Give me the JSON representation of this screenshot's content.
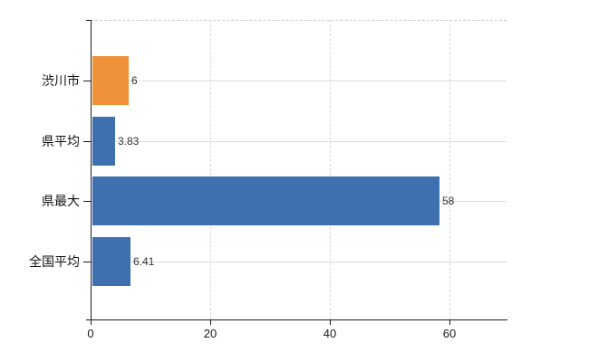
{
  "chart_data": {
    "type": "bar",
    "orientation": "horizontal",
    "categories": [
      "渋川市",
      "県平均",
      "県最大",
      "全国平均"
    ],
    "values": [
      6,
      3.83,
      58,
      6.41
    ],
    "value_labels": [
      "6",
      "3.83",
      "58",
      "6.41"
    ],
    "bar_colors": [
      "#F0923A",
      "#3E6FAE",
      "#3E6FAE",
      "#3E6FAE"
    ],
    "x_ticks": [
      0,
      20,
      40,
      60
    ],
    "x_tick_labels": [
      "0",
      "20",
      "40",
      "60"
    ],
    "xlim": [
      0,
      70
    ],
    "grid": true,
    "legend": "none"
  },
  "colors": {
    "bar_highlight": "#F0923A",
    "bar_default": "#3E6FAE",
    "axis": "#1a1a1a",
    "grid_horizontal": "#d9dcd9",
    "grid_vertical": "#d7d7d7",
    "top_border": "#c9c9c9",
    "value_label": "#333333",
    "background": "#ffffff"
  }
}
